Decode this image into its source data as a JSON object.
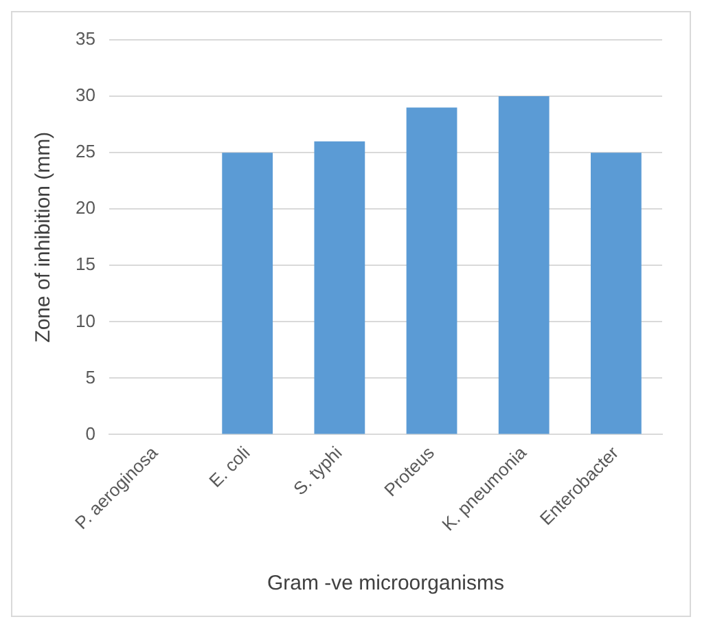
{
  "chart_data": {
    "type": "bar",
    "xlabel": "Gram -ve microorganisms",
    "ylabel": "Zone of inhibition (mm)",
    "categories": [
      "P. aeroginosa",
      "E. coli",
      "S. typhi",
      "Proteus",
      "K. pneumonia",
      "Enterobacter"
    ],
    "values": [
      0,
      25,
      26,
      29,
      30,
      25
    ],
    "color": "#5b9bd5",
    "ylim": [
      0,
      35
    ],
    "yticks": [
      0,
      5,
      10,
      15,
      20,
      25,
      30,
      35
    ],
    "grid": "y",
    "legend": false
  }
}
